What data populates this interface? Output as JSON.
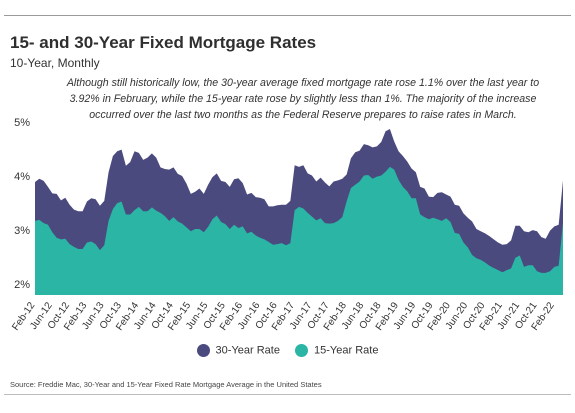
{
  "chart_data": {
    "type": "area",
    "title": "15- and 30-Year Fixed Mortgage Rates",
    "subtitle": "10-Year, Monthly",
    "annotation": "Although still historically low, the 30-year average fixed mortgage rate rose 1.1% over the last year to 3.92% in February, while the 15-year rate rose by slightly less than 1%. The majority of the increase occurred over the last two months as the Federal Reserve prepares to raise rates in March.",
    "source": "Source:  Freddie Mac, 30-Year  and 15-Year Fixed Rate Mortgage Average in the United States",
    "ylim": [
      1.8,
      5.0
    ],
    "y_ticks": [
      "5%",
      "4%",
      "3%",
      "2%"
    ],
    "y_tick_values": [
      5,
      4,
      3,
      2
    ],
    "x_tick_labels": [
      "Feb-12",
      "Jun-12",
      "Oct-12",
      "Feb-13",
      "Jun-13",
      "Oct-13",
      "Feb-14",
      "Jun-14",
      "Oct-14",
      "Feb-15",
      "Jun-15",
      "Oct-15",
      "Feb-16",
      "Jun-16",
      "Oct-16",
      "Feb-17",
      "Jun-17",
      "Oct-17",
      "Feb-18",
      "Jun-18",
      "Oct-18",
      "Feb-19",
      "Jun-19",
      "Oct-19",
      "Feb-20",
      "Jun-20",
      "Oct-20",
      "Feb-21",
      "Jun-21",
      "Oct-21",
      "Feb-22"
    ],
    "x_tick_index": [
      0,
      4,
      8,
      12,
      16,
      20,
      24,
      28,
      32,
      36,
      40,
      44,
      48,
      52,
      56,
      60,
      64,
      68,
      72,
      76,
      80,
      84,
      88,
      92,
      96,
      100,
      104,
      108,
      112,
      116,
      120
    ],
    "legend_position": "bottom",
    "grid": false,
    "series": [
      {
        "name": "30-Year Rate",
        "color": "#4b4a7f",
        "values": [
          3.89,
          3.95,
          3.91,
          3.8,
          3.68,
          3.67,
          3.55,
          3.6,
          3.47,
          3.38,
          3.35,
          3.35,
          3.53,
          3.59,
          3.57,
          3.45,
          3.54,
          4.07,
          4.37,
          4.46,
          4.49,
          4.19,
          4.26,
          4.46,
          4.43,
          4.3,
          4.34,
          4.42,
          4.34,
          4.16,
          4.13,
          4.12,
          4.16,
          4.04,
          4.0,
          3.86,
          3.67,
          3.71,
          3.77,
          3.67,
          3.84,
          3.98,
          4.05,
          3.91,
          3.89,
          3.8,
          3.94,
          3.96,
          3.87,
          3.66,
          3.69,
          3.61,
          3.6,
          3.57,
          3.44,
          3.44,
          3.46,
          3.47,
          3.47,
          3.54,
          4.2,
          4.17,
          4.2,
          4.05,
          4.01,
          3.9,
          3.97,
          3.88,
          3.81,
          3.9,
          3.92,
          3.95,
          4.03,
          4.33,
          4.44,
          4.47,
          4.59,
          4.57,
          4.53,
          4.55,
          4.63,
          4.83,
          4.87,
          4.64,
          4.46,
          4.37,
          4.27,
          4.14,
          4.07,
          3.8,
          3.77,
          3.62,
          3.61,
          3.69,
          3.7,
          3.66,
          3.62,
          3.47,
          3.45,
          3.31,
          3.23,
          3.16,
          3.02,
          2.98,
          2.94,
          2.89,
          2.83,
          2.77,
          2.73,
          2.74,
          2.81,
          3.08,
          3.08,
          2.98,
          2.96,
          3.0,
          2.98,
          2.87,
          2.84,
          2.99,
          3.07,
          3.1,
          3.92
        ]
      },
      {
        "name": "15-Year Rate",
        "color": "#2ab5a5",
        "values": [
          3.17,
          3.19,
          3.13,
          3.1,
          2.96,
          2.86,
          2.83,
          2.84,
          2.74,
          2.69,
          2.65,
          2.65,
          2.77,
          2.79,
          2.74,
          2.63,
          2.72,
          3.17,
          3.39,
          3.5,
          3.53,
          3.29,
          3.29,
          3.37,
          3.43,
          3.35,
          3.35,
          3.42,
          3.36,
          3.32,
          3.26,
          3.17,
          3.24,
          3.16,
          3.12,
          3.05,
          2.98,
          3.02,
          3.02,
          2.96,
          3.06,
          3.2,
          3.27,
          3.15,
          3.11,
          3.02,
          3.1,
          3.04,
          3.07,
          2.94,
          2.97,
          2.9,
          2.86,
          2.83,
          2.78,
          2.73,
          2.74,
          2.76,
          2.72,
          2.76,
          3.37,
          3.43,
          3.4,
          3.32,
          3.25,
          3.18,
          3.22,
          3.13,
          3.12,
          3.13,
          3.17,
          3.24,
          3.53,
          3.78,
          3.84,
          3.9,
          4.01,
          4.02,
          3.95,
          3.99,
          4.01,
          4.08,
          4.17,
          4.12,
          3.93,
          3.8,
          3.72,
          3.59,
          3.59,
          3.29,
          3.24,
          3.2,
          3.23,
          3.2,
          3.17,
          3.22,
          3.15,
          2.95,
          2.93,
          2.77,
          2.68,
          2.54,
          2.48,
          2.45,
          2.4,
          2.34,
          2.3,
          2.26,
          2.22,
          2.26,
          2.29,
          2.49,
          2.53,
          2.32,
          2.35,
          2.35,
          2.24,
          2.21,
          2.21,
          2.24,
          2.32,
          2.34,
          3.14
        ]
      }
    ]
  }
}
